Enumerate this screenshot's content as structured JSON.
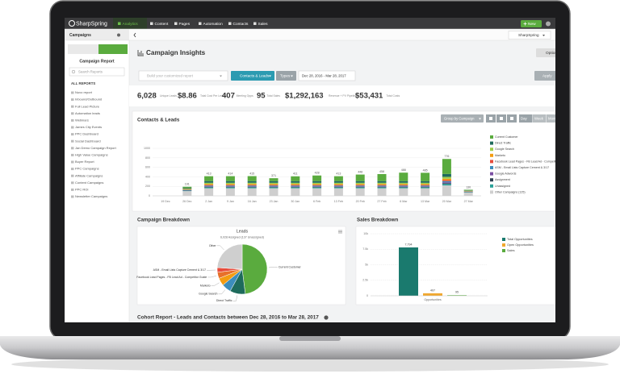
{
  "nav": {
    "logo": "SharpSpring",
    "tabs": [
      "Analytics",
      "Content",
      "Pages",
      "Automation",
      "Contacts",
      "Sales"
    ],
    "new_button": "New"
  },
  "subbar": {
    "section": "Campaigns",
    "account": "SharpSpring"
  },
  "sidebar": {
    "title": "Campaign Report",
    "search_placeholder": "Search Reports",
    "heading": "ALL REPORTS",
    "items": [
      "Nuvo report",
      "Inbound/Outbound",
      "Full Lead Picture",
      "Automation leads",
      "Webinars",
      "James City Events",
      "PPC Dashboard",
      "Social Dashboard",
      "Jan Demo Campaign Report",
      "High Value Campaigns",
      "Buyer Report",
      "PPC Campaigns",
      "Affiliate Campaigns",
      "Content Campaigns",
      "PPC ROI",
      "Newsletter Campaigns"
    ]
  },
  "page": {
    "title": "Campaign Insights",
    "options": "Options",
    "search_placeholder": "Build your customized report",
    "filter": "Contacts & Leads",
    "types": "Types",
    "date_range": "Dec 28, 2016 - Mar 28, 2017",
    "apply": "Apply"
  },
  "stats": [
    {
      "value": "6,028",
      "label": "Unique Leads"
    },
    {
      "value": "$8.86",
      "label": "Total Cost Per Lead"
    },
    {
      "value": "407",
      "label": "Meeting Opps"
    },
    {
      "value": "95",
      "label": "Total Sales"
    },
    {
      "value": "$1,292,163",
      "label": "Revenue + PV Pipeline"
    },
    {
      "value": "$53,431",
      "label": "Total Costs"
    }
  ],
  "chart_data": [
    {
      "type": "bar",
      "stacked": true,
      "title": "Contacts & Leads",
      "group_by": "Group by Campaign",
      "intervals": [
        "Day",
        "Week",
        "Month"
      ],
      "categories": [
        "19 Dec",
        "26 Dec",
        "2 Jan",
        "9 Jan",
        "16 Jan",
        "23 Jan",
        "30 Jan",
        "6 Feb",
        "13 Feb",
        "20 Feb",
        "27 Feb",
        "6 Mar",
        "13 Mar",
        "20 Mar",
        "27 Mar"
      ],
      "totals": [
        null,
        191,
        413,
        414,
        415,
        371,
        411,
        428,
        413,
        448,
        458,
        488,
        485,
        776,
        130
      ],
      "series": [
        {
          "name": "Current Customer",
          "color": "#5aab3e",
          "values": [
            null,
            21,
            103,
            104,
            105,
            61,
            101,
            118,
            103,
            138,
            148,
            178,
            175,
            316,
            8
          ]
        },
        {
          "name": "Direct Traffic",
          "color": "#1e6b5c",
          "values": [
            null,
            15,
            35,
            35,
            35,
            35,
            35,
            35,
            35,
            35,
            35,
            35,
            35,
            60,
            10
          ]
        },
        {
          "name": "Google Search",
          "color": "#9ccc4a",
          "values": [
            null,
            12,
            25,
            25,
            25,
            25,
            25,
            25,
            25,
            25,
            25,
            25,
            25,
            40,
            8
          ]
        },
        {
          "name": "Marketo",
          "color": "#f39c12",
          "values": [
            null,
            10,
            20,
            20,
            20,
            20,
            20,
            20,
            20,
            20,
            20,
            20,
            20,
            30,
            8
          ]
        },
        {
          "name": "Facebook Lead Pages - FB Lead Ad - Competitor Guide",
          "color": "#e74c3c",
          "values": [
            null,
            5,
            13,
            13,
            13,
            13,
            13,
            13,
            13,
            13,
            13,
            13,
            13,
            20,
            4
          ]
        },
        {
          "name": "ASM - Email Lists Capture Cement & 3/17",
          "color": "#3c8dbc",
          "values": [
            null,
            8,
            15,
            15,
            15,
            15,
            15,
            15,
            15,
            15,
            15,
            15,
            15,
            25,
            6
          ]
        },
        {
          "name": "Google Adwords",
          "color": "#7b4ea3",
          "values": [
            null,
            5,
            12,
            12,
            12,
            12,
            12,
            12,
            12,
            12,
            12,
            12,
            12,
            20,
            4
          ]
        },
        {
          "name": "Assignment",
          "color": "#2c3e50",
          "values": [
            null,
            5,
            10,
            10,
            10,
            10,
            10,
            10,
            10,
            10,
            10,
            10,
            10,
            15,
            4
          ]
        },
        {
          "name": "Unassigned",
          "color": "#2aa198",
          "values": [
            null,
            10,
            20,
            20,
            20,
            20,
            20,
            20,
            20,
            20,
            20,
            20,
            20,
            30,
            8
          ]
        },
        {
          "name": "Other Campaigns (125)",
          "color": "#cfcfcf",
          "values": [
            null,
            100,
            160,
            160,
            160,
            160,
            160,
            160,
            160,
            160,
            160,
            160,
            160,
            220,
            70
          ]
        }
      ],
      "ylim": [
        0,
        1000
      ],
      "yticks": [
        0,
        200,
        400,
        600,
        800,
        1000
      ],
      "grid": true,
      "legend": "right"
    },
    {
      "type": "pie",
      "title": "Campaign Breakdown",
      "subtitle": "Leads",
      "caption": "6,028 Assigned (137 Unassigned)",
      "categories": [
        "Current Customer",
        "Direct Traffic",
        "Google Search",
        "Marketo",
        "Facebook Lead Pages - FB Lead Ad - Competitor Guide",
        "ASM - Email Lists Capture Cement & 3/17",
        "Other"
      ],
      "values": [
        48,
        10,
        6,
        5,
        4,
        3,
        24
      ],
      "colors": [
        "#5aab3e",
        "#1e6b5c",
        "#3c8dbc",
        "#f39c12",
        "#e8702a",
        "#e74c3c",
        "#cfcfcf"
      ]
    },
    {
      "type": "bar",
      "title": "Sales Breakdown",
      "categories": [
        "Opportunities"
      ],
      "series": [
        {
          "name": "Total Opportunities",
          "color": "#1a7a6e",
          "values": [
            7794
          ],
          "value_labels": [
            "7,794"
          ]
        },
        {
          "name": "Open Opportunities",
          "color": "#f0a830",
          "values": [
            407
          ]
        },
        {
          "name": "Sales",
          "color": "#5aab3e",
          "values": [
            95
          ]
        }
      ],
      "ylim": [
        0,
        10000
      ],
      "yticks": [
        0,
        {
          "value": 2500,
          "label": "2.5k"
        },
        {
          "value": 5000,
          "label": "5k"
        },
        {
          "value": 7500,
          "label": "7.5k"
        },
        {
          "value": 10000,
          "label": "10k"
        }
      ],
      "grid": true,
      "legend": "right"
    }
  ],
  "cohort_title": "Cohort Report - Leads and Contacts between Dec 28, 2016 to Mar 28, 2017"
}
